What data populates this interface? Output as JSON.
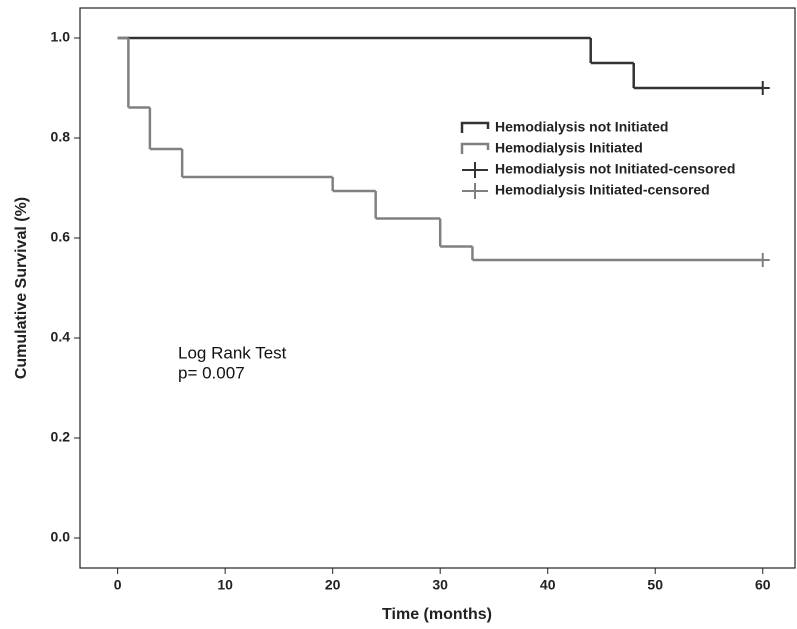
{
  "chart_data": {
    "type": "step",
    "xlabel": "Time (months)",
    "ylabel": "Cumulative Survival (%)",
    "annotations": [
      "Log Rank Test",
      "p= 0.007"
    ],
    "xlim": [
      -3.5,
      63
    ],
    "ylim": [
      -0.06,
      1.06
    ],
    "xticks": [
      0,
      10,
      20,
      30,
      40,
      50,
      60
    ],
    "yticks": [
      {
        "value": 0,
        "label": "0.0"
      },
      0.2,
      0.4,
      0.6,
      0.8,
      {
        "value": 1,
        "label": "1.0"
      }
    ],
    "series": [
      {
        "name": "Hemodialysis not Initiated",
        "color": "#333333",
        "marker": "step",
        "x": [
          0,
          44,
          48,
          60
        ],
        "values": [
          1,
          0.95,
          0.9,
          0.9
        ]
      },
      {
        "name": "Hemodialysis Initiated",
        "color": "#808080",
        "marker": "step",
        "x": [
          0,
          1,
          3,
          6,
          20,
          24,
          30,
          33,
          60
        ],
        "values": [
          1,
          0.861,
          0.778,
          0.722,
          0.694,
          0.639,
          0.583,
          0.556,
          0.556
        ]
      },
      {
        "name": "Hemodialysis not Initiated-censored",
        "color": "#333333",
        "marker": "plus",
        "x": [
          60
        ],
        "values": [
          0.9
        ]
      },
      {
        "name": "Hemodialysis Initiated-censored",
        "color": "#808080",
        "marker": "plus",
        "x": [
          60
        ],
        "values": [
          0.556
        ]
      }
    ]
  }
}
